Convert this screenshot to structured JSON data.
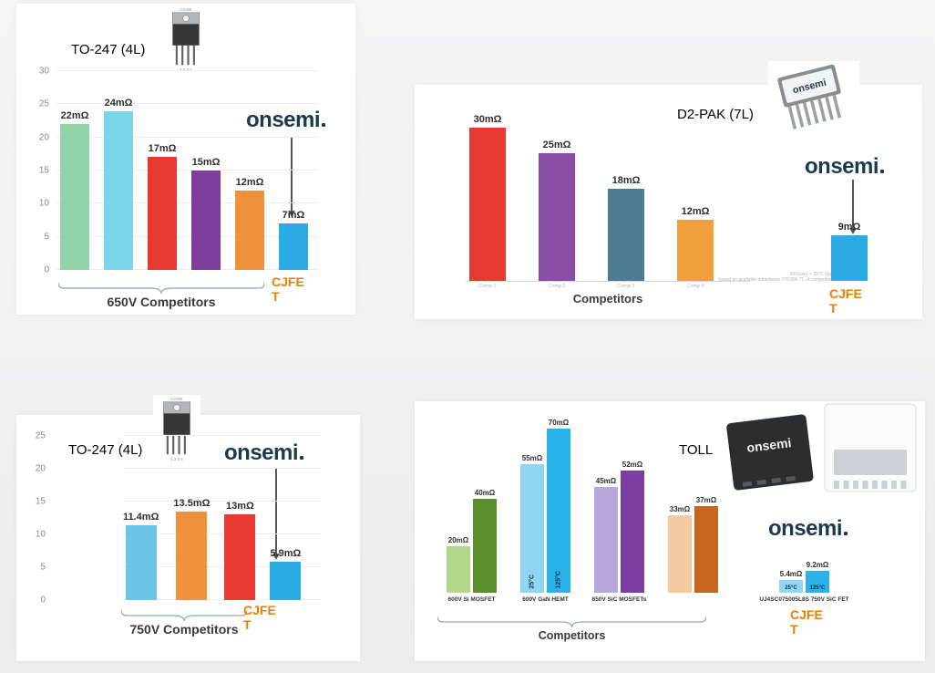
{
  "brand": {
    "logo_text": "onsemi",
    "cjfet_label": "CJFET",
    "accent_orange": "#f07d00",
    "logo_color": "#1b3a4f"
  },
  "packages": {
    "to247": {
      "case_label": "CASE",
      "pins": "1 2 3 4"
    },
    "d2pak_marking": "onsemi",
    "toll_marking": "onsemi"
  },
  "chart_data": [
    {
      "type": "bar",
      "title": "TO-247 (4L)",
      "xlabel": "650V Competitors",
      "ylim": [
        0,
        30
      ],
      "yticks": [
        0,
        5,
        10,
        15,
        20,
        25,
        30
      ],
      "grid": true,
      "unit": "mΩ",
      "values": [
        22,
        24,
        17,
        15,
        12,
        7
      ],
      "labels": [
        "22mΩ",
        "24mΩ",
        "17mΩ",
        "15mΩ",
        "12mΩ",
        "7mΩ"
      ],
      "colors": [
        "#92d3a9",
        "#79d5e9",
        "#e6392f",
        "#7b3f9b",
        "#f0923c",
        "#2aabe2"
      ],
      "highlight": "CJFET",
      "legend_position": "none"
    },
    {
      "type": "bar",
      "title": "D2-PAK (7L)",
      "xlabel": "Competitors",
      "ylim": [
        0,
        32
      ],
      "grid": false,
      "unit": "mΩ",
      "values": [
        30,
        25,
        18,
        12,
        9
      ],
      "labels": [
        "30mΩ",
        "25mΩ",
        "18mΩ",
        "12mΩ",
        "9mΩ"
      ],
      "captions": [
        "Comp 1",
        "Comp 2",
        "Comp 3",
        "Comp 4",
        ""
      ],
      "colors": [
        "#e6392f",
        "#8a4da6",
        "#4e7b92",
        "#f0a03c",
        "#2aabe2"
      ],
      "highlight": "CJFET",
      "fine_print_1": "RDS(on) + 25°C (typ)",
      "fine_print_2": "based on available datasheets 775/300-TL of competitive",
      "legend_position": "none"
    },
    {
      "type": "bar",
      "title": "TO-247 (4L)",
      "xlabel": "750V Competitors",
      "ylim": [
        0,
        25
      ],
      "yticks": [
        0,
        5,
        10,
        15,
        20,
        25
      ],
      "grid": true,
      "unit": "mΩ",
      "values": [
        11.4,
        13.5,
        13,
        5.9
      ],
      "labels": [
        "11.4mΩ",
        "13.5mΩ",
        "13mΩ",
        "5.9mΩ"
      ],
      "colors": [
        "#6ac5e8",
        "#f0923c",
        "#e6392f",
        "#2aabe2"
      ],
      "highlight": "CJFET",
      "legend_position": "none"
    },
    {
      "type": "bar",
      "title": "TOLL",
      "xlabel": "Competitors",
      "ylim": [
        0,
        75
      ],
      "grid": false,
      "unit": "mΩ",
      "highlight": "CJFET",
      "groups": [
        {
          "category": "600V Si MOSFET",
          "bars": [
            {
              "value": 20,
              "label": "20mΩ",
              "color": "#b4d88b"
            },
            {
              "value": 40,
              "label": "40mΩ",
              "color": "#5a8f2b"
            }
          ]
        },
        {
          "category": "600V GaN HEMT",
          "bars": [
            {
              "value": 55,
              "label": "55mΩ",
              "color": "#8fd6f2",
              "inner": "25°C",
              "inner_vertical": true
            },
            {
              "value": 70,
              "label": "70mΩ",
              "color": "#2ab3e8",
              "inner": "125°C",
              "inner_vertical": true
            }
          ]
        },
        {
          "category": "650V SiC MOSFETs",
          "bars": [
            {
              "value": 45,
              "label": "45mΩ",
              "color": "#b7a7d9"
            },
            {
              "value": 52,
              "label": "52mΩ",
              "color": "#7a3fa0"
            }
          ]
        },
        {
          "category": "",
          "bars": [
            {
              "value": 33,
              "label": "33mΩ",
              "color": "#f6caa0"
            },
            {
              "value": 37,
              "label": "37mΩ",
              "color": "#c9661d"
            }
          ]
        },
        {
          "category": "UJ4SC075005L8S 750V SiC FET",
          "bars": [
            {
              "value": 5.4,
              "label": "5.4mΩ",
              "color": "#8fd6f2",
              "inner": "25°C"
            },
            {
              "value": 9.2,
              "label": "9.2mΩ",
              "color": "#2ab3e8",
              "inner": "125°C"
            }
          ]
        }
      ]
    }
  ]
}
